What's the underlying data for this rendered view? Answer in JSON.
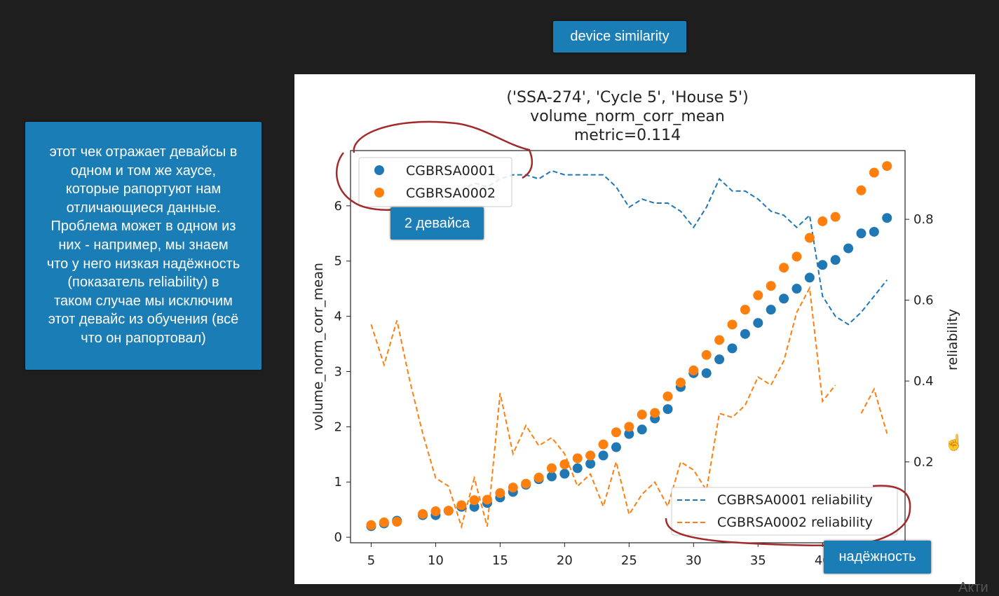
{
  "top_button": {
    "label": "device similarity"
  },
  "side_note": {
    "text": "этот чек отражает девайсы в\nодном и том же хаусе,\nкоторые рапортуют нам\nотличающиеся данные.\nПроблема может в одном из\nних - например, мы знаем\nчто у него низкая надёжность\n(показатель reliability) в\nтаком случае мы исключим\nэтот девайс из обучения (всё\nчто он рапортовал)"
  },
  "badges": {
    "devices": "2 девайса",
    "reliability": "надёжность"
  },
  "watermark": "Акти",
  "colors": {
    "blue": "#1f77b4",
    "orange": "#ff7f0e",
    "callout": "#1b7db6",
    "annotation": "#a12a2a"
  },
  "chart_data": {
    "type": "scatter",
    "title_lines": [
      "('SSA-274', 'Cycle 5', 'House 5')",
      "volume_norm_corr_mean",
      "metric=0.114"
    ],
    "xlabel": "",
    "ylabel": "volume_norm_corr_mean",
    "y2label": "reliability",
    "xlim": [
      3.4,
      46.4
    ],
    "ylim": [
      -0.1,
      7.0
    ],
    "y2lim": [
      0.0,
      0.97
    ],
    "xticks": [
      5,
      10,
      15,
      20,
      25,
      30,
      35,
      40
    ],
    "yticks": [
      0,
      1,
      2,
      3,
      4,
      5,
      6
    ],
    "y2ticks": [
      0.2,
      0.4,
      0.6,
      0.8
    ],
    "y2tick_labels": [
      "0.2",
      "0.4",
      "0.6",
      "0.8"
    ],
    "scatter_series": [
      {
        "name": "CGBRSA0001",
        "color": "#1f77b4",
        "x": [
          5,
          6,
          7,
          9,
          10,
          11,
          12,
          13,
          14,
          15,
          16,
          17,
          18,
          19,
          20,
          21,
          22,
          23,
          24,
          25,
          26,
          27,
          28,
          29,
          30,
          31,
          32,
          33,
          34,
          35,
          36,
          37,
          38,
          39,
          40,
          41,
          42,
          43,
          44,
          45
        ],
        "y": [
          0.2,
          0.25,
          0.3,
          0.4,
          0.4,
          0.48,
          0.55,
          0.55,
          0.62,
          0.72,
          0.82,
          0.95,
          1.05,
          1.1,
          1.15,
          1.25,
          1.33,
          1.48,
          1.63,
          1.87,
          1.95,
          2.15,
          2.32,
          2.72,
          2.97,
          2.97,
          3.22,
          3.42,
          3.68,
          3.88,
          4.12,
          4.32,
          4.5,
          4.7,
          4.93,
          5.02,
          5.23,
          5.5,
          5.53,
          5.78
        ]
      },
      {
        "name": "CGBRSA0002",
        "color": "#ff7f0e",
        "x": [
          5,
          6,
          7,
          9,
          10,
          11,
          12,
          13,
          14,
          15,
          16,
          17,
          18,
          19,
          20,
          21,
          22,
          23,
          24,
          25,
          26,
          27,
          28,
          29,
          30,
          31,
          32,
          33,
          34,
          35,
          36,
          37,
          38,
          39,
          40,
          41,
          43,
          44,
          45
        ],
        "y": [
          0.22,
          0.27,
          0.28,
          0.42,
          0.47,
          0.48,
          0.58,
          0.67,
          0.68,
          0.8,
          0.9,
          0.97,
          1.08,
          1.25,
          1.32,
          1.43,
          1.48,
          1.68,
          1.9,
          2.0,
          2.22,
          2.25,
          2.55,
          2.8,
          3.02,
          3.3,
          3.57,
          3.85,
          4.12,
          4.38,
          4.55,
          4.88,
          5.08,
          5.42,
          5.72,
          5.8,
          6.28,
          6.6,
          6.72
        ]
      }
    ],
    "line_series": [
      {
        "name": "CGBRSA0001 reliability",
        "color": "#1f77b4",
        "style": "dashed",
        "x": [
          12,
          13,
          14,
          15,
          16,
          17,
          18,
          19,
          20,
          21,
          22,
          23,
          24,
          25,
          26,
          27,
          28,
          29,
          30,
          31,
          32,
          33,
          34,
          35,
          36,
          37,
          38,
          39,
          40,
          41,
          42,
          43,
          44,
          45
        ],
        "y": [
          0.87,
          0.89,
          0.88,
          0.9,
          0.91,
          0.91,
          0.9,
          0.92,
          0.91,
          0.91,
          0.91,
          0.91,
          0.88,
          0.83,
          0.85,
          0.84,
          0.84,
          0.82,
          0.78,
          0.83,
          0.9,
          0.87,
          0.87,
          0.85,
          0.82,
          0.81,
          0.78,
          0.81,
          0.61,
          0.56,
          0.54,
          0.57,
          0.61,
          0.65
        ]
      },
      {
        "name": "CGBRSA0002 reliability",
        "color": "#ff7f0e",
        "style": "dashed",
        "segments": [
          {
            "x": [
              5,
              6,
              7,
              8,
              9,
              10,
              11,
              12,
              13,
              14,
              15,
              16,
              17,
              18,
              19,
              20,
              21,
              22,
              23,
              24,
              25,
              26,
              27,
              28,
              29,
              30,
              31,
              32,
              33,
              34,
              35,
              36,
              37,
              38,
              39,
              40,
              41
            ],
            "y": [
              0.54,
              0.44,
              0.55,
              0.4,
              0.27,
              0.16,
              0.14,
              0.04,
              0.16,
              0.04,
              0.37,
              0.22,
              0.29,
              0.24,
              0.26,
              0.22,
              0.14,
              0.17,
              0.09,
              0.2,
              0.07,
              0.12,
              0.15,
              0.09,
              0.2,
              0.18,
              0.13,
              0.32,
              0.31,
              0.34,
              0.41,
              0.39,
              0.45,
              0.57,
              0.63,
              0.35,
              0.39
            ]
          },
          {
            "x": [
              43,
              44,
              45
            ],
            "y": [
              0.32,
              0.38,
              0.27
            ]
          }
        ]
      }
    ],
    "legend_top": {
      "placement": "upper-left",
      "entries": [
        "CGBRSA0001",
        "CGBRSA0002"
      ]
    },
    "legend_bottom": {
      "placement": "lower-right",
      "entries": [
        "CGBRSA0001 reliability",
        "CGBRSA0002 reliability"
      ]
    },
    "grid": false
  }
}
